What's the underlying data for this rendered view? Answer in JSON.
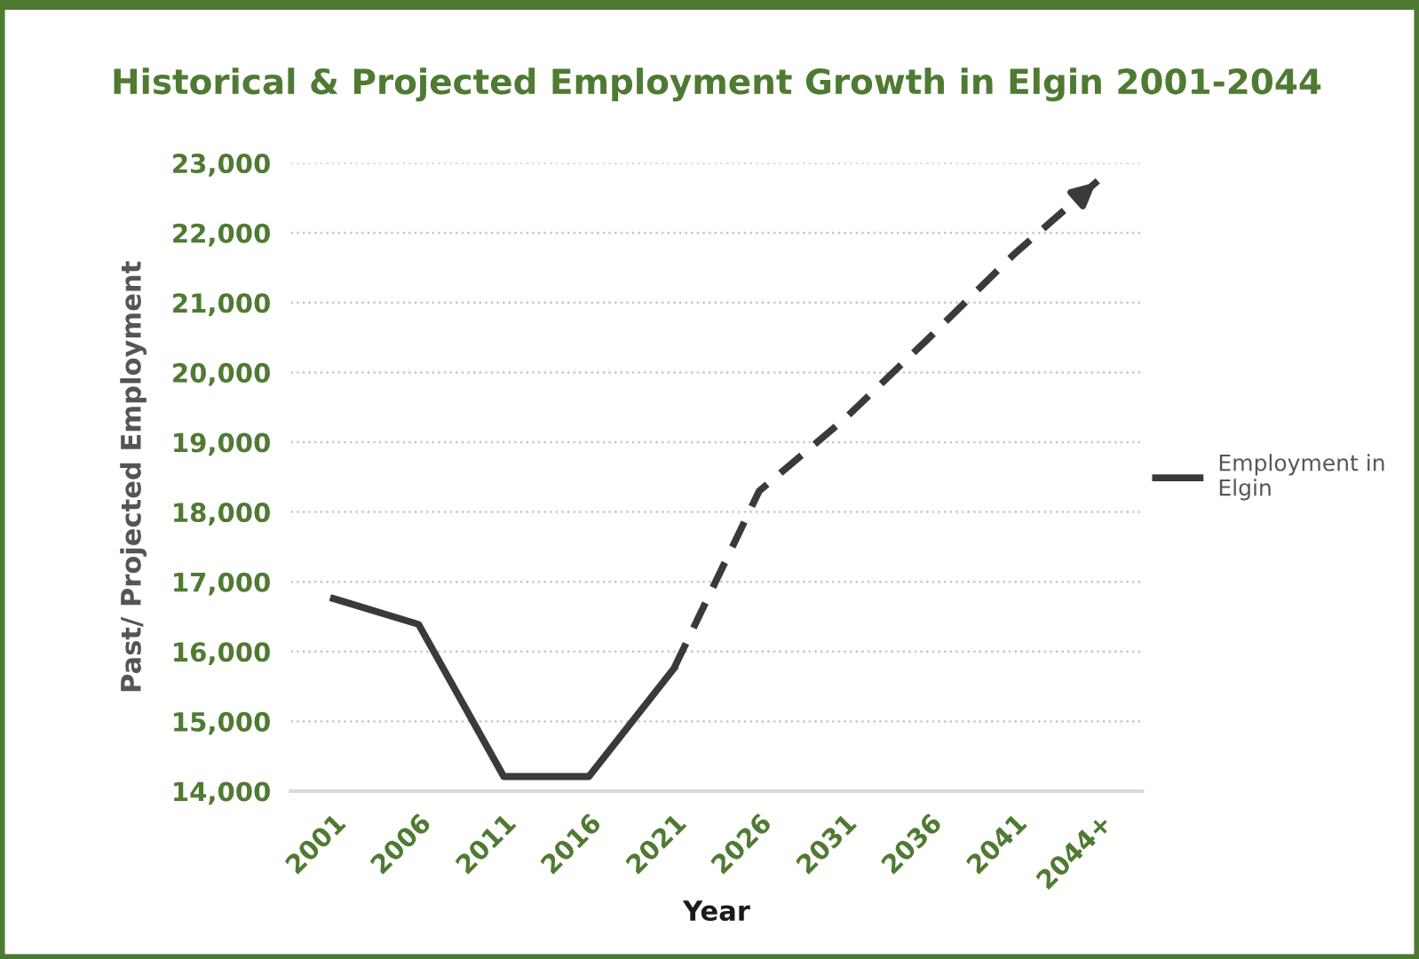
{
  "chart_data": {
    "type": "line",
    "title": "Historical & Projected Employment Growth in Elgin 2001-2044",
    "xlabel": "Year",
    "ylabel": "Past/ Projected Employment",
    "categories": [
      "2001",
      "2006",
      "2011",
      "2016",
      "2021",
      "2026",
      "2031",
      "2036",
      "2041",
      "2044+"
    ],
    "series": [
      {
        "name": "Employment in Elgin",
        "color": "#3a3a3a",
        "line_style": "solid",
        "values": [
          16760,
          16390,
          14210,
          14210,
          15760,
          null,
          null,
          null,
          null,
          null
        ]
      },
      {
        "color": "#3a3a3a",
        "line_style": "dashed",
        "values": [
          null,
          null,
          null,
          null,
          15760,
          18300,
          19330,
          20500,
          21700,
          22770
        ]
      }
    ],
    "ylim": [
      14000,
      23000
    ],
    "yticks": [
      {
        "value": 14000,
        "label": "14,000"
      },
      {
        "value": 15000,
        "label": "15,000"
      },
      {
        "value": 16000,
        "label": "16,000"
      },
      {
        "value": 17000,
        "label": "17,000"
      },
      {
        "value": 18000,
        "label": "18,000"
      },
      {
        "value": 19000,
        "label": "19,000"
      },
      {
        "value": 20000,
        "label": "20,000"
      },
      {
        "value": 21000,
        "label": "21,000"
      },
      {
        "value": 22000,
        "label": "22,000"
      },
      {
        "value": 23000,
        "label": "23,000"
      }
    ],
    "grid": "y",
    "legend": "right",
    "marker": "none"
  }
}
